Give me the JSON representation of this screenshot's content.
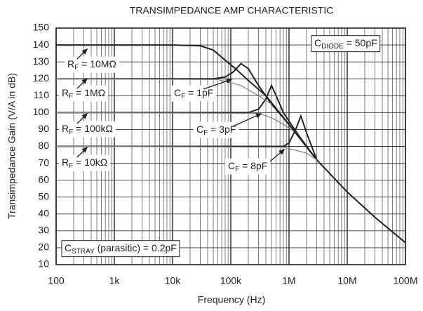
{
  "chart_data": {
    "type": "line",
    "title": "TRANSIMPEDANCE AMP CHARACTERISTIC",
    "x_label": "Frequency (Hz)",
    "y_label": "Transimpedance Gain (V/A in dB)",
    "log_x": true,
    "grid": true,
    "xlim": [
      100,
      100000000
    ],
    "xticks": [
      100,
      {
        "value": 1000,
        "label": "1k"
      },
      {
        "value": 10000,
        "label": "10k"
      },
      {
        "value": 100000,
        "label": "100k"
      },
      {
        "value": 1000000,
        "label": "1M"
      },
      {
        "value": 10000000,
        "label": "10M"
      },
      {
        "value": 100000000,
        "label": "100M"
      }
    ],
    "ylim": [
      10,
      150
    ],
    "yticks": [
      10,
      20,
      30,
      40,
      50,
      60,
      70,
      80,
      90,
      100,
      110,
      120,
      130,
      140,
      150
    ],
    "series": [
      {
        "color": "#222222",
        "x": [
          100,
          10000,
          30000,
          50000,
          80000,
          120000,
          200000,
          400000,
          1000000,
          3000000,
          10000000,
          30000000,
          100000000
        ],
        "values": [
          140,
          140,
          139.5,
          137,
          131,
          126,
          119,
          110,
          93,
          72,
          53,
          38,
          23
        ]
      },
      {
        "color": "#222222",
        "x": [
          100,
          50000,
          80000,
          110000,
          150000,
          200000,
          300000,
          500000,
          1000000,
          3000000
        ],
        "values": [
          120,
          120,
          121,
          124,
          129,
          126,
          116,
          105,
          93,
          72
        ]
      },
      {
        "color": "#222222",
        "x": [
          100,
          200000,
          300000,
          400000,
          500000,
          600000,
          800000,
          1000000,
          1500000,
          3000000
        ],
        "values": [
          100,
          100,
          102,
          108,
          116,
          110,
          100,
          95,
          86,
          72
        ]
      },
      {
        "color": "#222222",
        "x": [
          100,
          800000,
          1000000,
          1300000,
          1600000,
          2000000,
          3000000
        ],
        "values": [
          80,
          80,
          82,
          90,
          98,
          88,
          72
        ]
      },
      {
        "color": "#888888",
        "x": [
          100,
          60000,
          150000,
          300000,
          500000
        ],
        "values": [
          120,
          119.5,
          116,
          110,
          105
        ]
      },
      {
        "color": "#888888",
        "x": [
          100,
          300000,
          500000,
          800000,
          1200000
        ],
        "values": [
          100,
          99.5,
          97,
          93,
          89
        ]
      },
      {
        "color": "#888888",
        "x": [
          100,
          800000,
          1200000,
          2000000,
          3000000
        ],
        "values": [
          80,
          79.5,
          78,
          76,
          72
        ]
      }
    ],
    "annotations": [
      [
        "R",
        "F",
        " = 10MΩ"
      ],
      [
        "R",
        "F",
        " = 1MΩ"
      ],
      [
        "R",
        "F",
        " = 100kΩ"
      ],
      [
        "R",
        "F",
        " = 10kΩ"
      ],
      [
        "C",
        "F",
        " = 1pF"
      ],
      [
        "C",
        "F",
        " = 3pF"
      ],
      [
        "C",
        "F",
        " = 8pF"
      ],
      [
        "C",
        "DIODE",
        " = 50pF"
      ],
      [
        "C",
        "STRAY",
        " (parasitic) = 0.2pF"
      ]
    ]
  }
}
